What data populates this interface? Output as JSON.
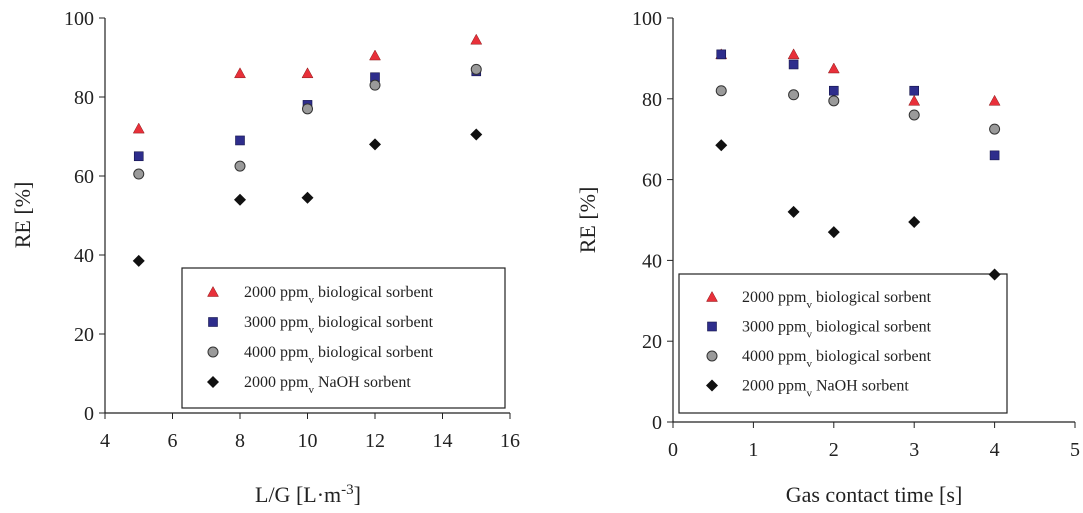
{
  "chart_data": [
    {
      "type": "scatter",
      "xlabel": "L/G [L·m",
      "xlabel_sup": "-3",
      "xlabel_end": "]",
      "ylabel": "RE [%]",
      "xlim": [
        4,
        16
      ],
      "ylim": [
        0,
        100
      ],
      "xticks": [
        "4",
        "6",
        "8",
        "10",
        "12",
        "14",
        "16"
      ],
      "yticks": [
        "0",
        "20",
        "40",
        "60",
        "80",
        "100"
      ],
      "grid": false,
      "legend_position": "bottom-right",
      "series": [
        {
          "name": "2000 ppm",
          "sub": "v",
          "rest": " biological sorbent",
          "marker": "triangle",
          "color": "#e8303a",
          "points": [
            [
              5,
              72
            ],
            [
              8,
              86
            ],
            [
              10,
              86
            ],
            [
              12,
              90.5
            ],
            [
              15,
              94.5
            ]
          ]
        },
        {
          "name": "3000 ppm",
          "sub": "v",
          "rest": " biological sorbent",
          "marker": "square",
          "color": "#2e2d8c",
          "points": [
            [
              5,
              65
            ],
            [
              8,
              69
            ],
            [
              10,
              78
            ],
            [
              12,
              85
            ],
            [
              15,
              86.5
            ]
          ]
        },
        {
          "name": "4000 ppm",
          "sub": "v",
          "rest": " biological sorbent",
          "marker": "circle",
          "color": "#9a9a9a",
          "points": [
            [
              5,
              60.5
            ],
            [
              8,
              62.5
            ],
            [
              10,
              77
            ],
            [
              12,
              83
            ],
            [
              15,
              87
            ]
          ]
        },
        {
          "name": "2000 ppm",
          "sub": "v",
          "rest": " NaOH sorbent",
          "marker": "diamond",
          "color": "#111111",
          "points": [
            [
              5,
              38.5
            ],
            [
              8,
              54
            ],
            [
              10,
              54.5
            ],
            [
              12,
              68
            ],
            [
              15,
              70.5
            ]
          ]
        }
      ]
    },
    {
      "type": "scatter",
      "xlabel": "Gas contact time [s]",
      "ylabel": "RE [%]",
      "xlim": [
        0,
        5
      ],
      "ylim": [
        0,
        100
      ],
      "xticks": [
        "0",
        "1",
        "2",
        "3",
        "4",
        "5"
      ],
      "yticks": [
        "0",
        "20",
        "40",
        "60",
        "80",
        "100"
      ],
      "grid": false,
      "legend_position": "bottom-left",
      "series": [
        {
          "name": "2000 ppm",
          "sub": "v",
          "rest": " biological sorbent",
          "marker": "triangle",
          "color": "#e8303a",
          "points": [
            [
              0.6,
              91
            ],
            [
              1.5,
              91
            ],
            [
              2,
              87.5
            ],
            [
              3,
              79.5
            ],
            [
              4,
              79.5
            ]
          ]
        },
        {
          "name": "3000 ppm",
          "sub": "v",
          "rest": " biological sorbent",
          "marker": "square",
          "color": "#2e2d8c",
          "points": [
            [
              0.6,
              91
            ],
            [
              1.5,
              88.5
            ],
            [
              2,
              82
            ],
            [
              3,
              82
            ],
            [
              4,
              66
            ]
          ]
        },
        {
          "name": "4000 ppm",
          "sub": "v",
          "rest": " biological sorbent",
          "marker": "circle",
          "color": "#9a9a9a",
          "points": [
            [
              0.6,
              82
            ],
            [
              1.5,
              81
            ],
            [
              2,
              79.5
            ],
            [
              3,
              76
            ],
            [
              4,
              72.5
            ]
          ]
        },
        {
          "name": "2000 ppm",
          "sub": "v",
          "rest": " NaOH sorbent",
          "marker": "diamond",
          "color": "#111111",
          "points": [
            [
              0.6,
              68.5
            ],
            [
              1.5,
              52
            ],
            [
              2,
              47
            ],
            [
              3,
              49.5
            ],
            [
              4,
              36.5
            ]
          ]
        }
      ]
    }
  ]
}
